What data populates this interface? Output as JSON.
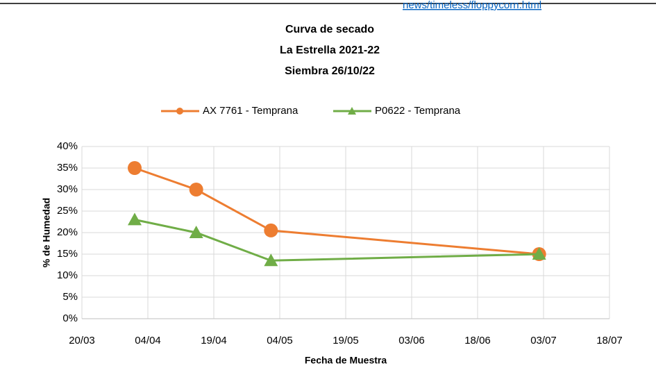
{
  "source_link": "news/timeless/floppycorn.html",
  "chart_data": {
    "type": "line",
    "title": [
      "Curva de secado",
      "La Estrella 2021-22",
      "Siembra 26/10/22"
    ],
    "x_label": "Fecha de Muestra",
    "y_label": "% de Humedad",
    "x": [
      "01/04",
      "15/04",
      "02/05",
      "02/07"
    ],
    "series": [
      {
        "name": "AX 7761 - Temprana",
        "color": "#ed7d31",
        "marker": "circle",
        "values": [
          35,
          30,
          20.5,
          15
        ]
      },
      {
        "name": "P0622 - Temprana",
        "color": "#70ad47",
        "marker": "triangle",
        "values": [
          23,
          20,
          13.5,
          15
        ]
      }
    ],
    "xlim": [
      "20/03",
      "18/07"
    ],
    "xticks": [
      "20/03",
      "04/04",
      "19/04",
      "04/05",
      "19/05",
      "03/06",
      "18/06",
      "03/07",
      "18/07"
    ],
    "ylim": [
      0,
      40
    ],
    "yticks": [
      {
        "value": 0,
        "label": "0%"
      },
      {
        "value": 5,
        "label": "5%"
      },
      {
        "value": 10,
        "label": "10%"
      },
      {
        "value": 15,
        "label": "15%"
      },
      {
        "value": 20,
        "label": "20%"
      },
      {
        "value": 25,
        "label": "25%"
      },
      {
        "value": 30,
        "label": "30%"
      },
      {
        "value": 35,
        "label": "35%"
      },
      {
        "value": 40,
        "label": "40%"
      }
    ],
    "grid": true,
    "legend": "top"
  }
}
